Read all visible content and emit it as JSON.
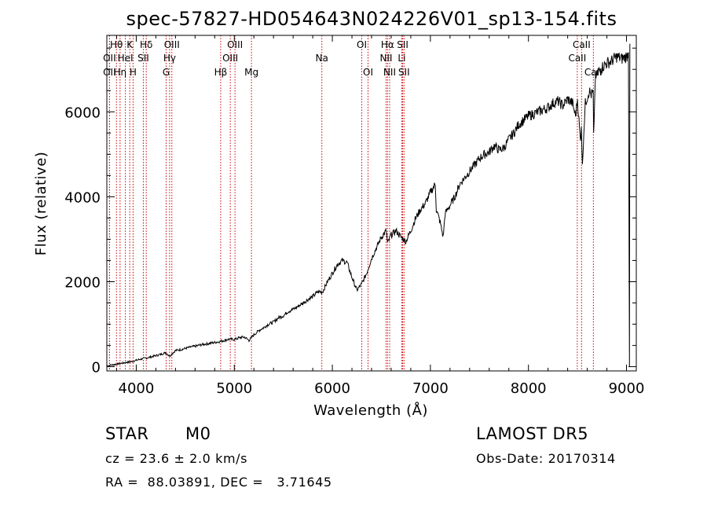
{
  "chart_data": {
    "type": "line",
    "title": "spec-57827-HD054643N024226V01_sp13-154.fits",
    "xlabel": "Wavelength (Å)",
    "ylabel": "Flux (relative)",
    "xlim": [
      3700,
      9100
    ],
    "ylim": [
      -100,
      7800
    ],
    "x_ticks": [
      4000,
      5000,
      6000,
      7000,
      8000,
      9000
    ],
    "y_ticks": [
      0,
      2000,
      4000,
      6000
    ],
    "x_tick_labels": [
      "4000",
      "5000",
      "6000",
      "7000",
      "8000",
      "9000"
    ],
    "y_tick_labels": [
      "0",
      "2000",
      "4000",
      "6000"
    ],
    "grid": false,
    "series": [
      {
        "x": [
          3700,
          3750,
          3800,
          3850,
          3900,
          3950,
          4000,
          4050,
          4100,
          4150,
          4200,
          4250,
          4300,
          4340,
          4400,
          4450,
          4500,
          4550,
          4600,
          4650,
          4700,
          4750,
          4800,
          4850,
          4900,
          4950,
          5000,
          5050,
          5100,
          5150,
          5200,
          5250,
          5300,
          5350,
          5400,
          5450,
          5500,
          5550,
          5600,
          5650,
          5700,
          5750,
          5800,
          5850,
          5900,
          5950,
          6000,
          6050,
          6100,
          6150,
          6200,
          6250,
          6300,
          6350,
          6400,
          6450,
          6500,
          6550,
          6563,
          6600,
          6650,
          6700,
          6750,
          6800,
          6850,
          6900,
          6950,
          7000,
          7050,
          7060,
          7100,
          7130,
          7150,
          7200,
          7250,
          7300,
          7350,
          7400,
          7450,
          7500,
          7550,
          7600,
          7650,
          7700,
          7750,
          7800,
          7850,
          7900,
          7950,
          8000,
          8050,
          8100,
          8150,
          8200,
          8250,
          8300,
          8350,
          8400,
          8450,
          8480,
          8500,
          8530,
          8540,
          8550,
          8560,
          8580,
          8600,
          8620,
          8640,
          8660,
          8665,
          8680,
          8700,
          8750,
          8800,
          8850,
          8900,
          8950,
          9000,
          9020
        ],
        "y": [
          20,
          40,
          60,
          80,
          100,
          120,
          150,
          180,
          200,
          230,
          260,
          290,
          330,
          250,
          380,
          400,
          430,
          460,
          480,
          510,
          530,
          550,
          570,
          590,
          620,
          650,
          640,
          680,
          700,
          620,
          750,
          850,
          920,
          1000,
          1050,
          1150,
          1200,
          1300,
          1350,
          1420,
          1500,
          1580,
          1650,
          1760,
          1760,
          2000,
          2200,
          2400,
          2500,
          2450,
          2100,
          1800,
          1950,
          2200,
          2550,
          2800,
          3050,
          3200,
          2900,
          3100,
          3200,
          3050,
          2950,
          3200,
          3500,
          3700,
          3850,
          4100,
          4300,
          3700,
          3400,
          3050,
          3600,
          3800,
          4000,
          4300,
          4450,
          4600,
          4750,
          4900,
          5000,
          5050,
          5200,
          5100,
          5150,
          5350,
          5500,
          5700,
          5800,
          5900,
          5950,
          6000,
          6050,
          6100,
          6200,
          6250,
          6150,
          6300,
          6200,
          5900,
          6300,
          5300,
          5700,
          4700,
          5300,
          6200,
          6350,
          6500,
          6400,
          6450,
          5400,
          6700,
          6900,
          7050,
          7150,
          7200,
          7300,
          7250,
          7300,
          7400
        ]
      }
    ],
    "lines": [
      {
        "label": "OII",
        "x": 3727,
        "row": 1
      },
      {
        "label": "Hθ",
        "x": 3798,
        "row": 0
      },
      {
        "label": "OII",
        "x": 3727,
        "row": 2
      },
      {
        "label": "Hη",
        "x": 3835,
        "row": 2
      },
      {
        "label": "HeI",
        "x": 3889,
        "row": 1
      },
      {
        "label": "K",
        "x": 3934,
        "row": 0
      },
      {
        "label": "H",
        "x": 3968,
        "row": 2
      },
      {
        "label": "SII",
        "x": 4072,
        "row": 1
      },
      {
        "label": "Hδ",
        "x": 4102,
        "row": 0
      },
      {
        "label": "OIII",
        "x": 4363,
        "row": 0
      },
      {
        "label": "Hγ",
        "x": 4340,
        "row": 1
      },
      {
        "label": "G",
        "x": 4305,
        "row": 2
      },
      {
        "label": "Hβ",
        "x": 4861,
        "row": 2
      },
      {
        "label": "OIII",
        "x": 5007,
        "row": 0
      },
      {
        "label": "OIII",
        "x": 4959,
        "row": 1
      },
      {
        "label": "Mg",
        "x": 5175,
        "row": 2
      },
      {
        "label": "Na",
        "x": 5893,
        "row": 1
      },
      {
        "label": "OI",
        "x": 6300,
        "row": 0
      },
      {
        "label": "OI",
        "x": 6364,
        "row": 2
      },
      {
        "label": "Hα",
        "x": 6563,
        "row": 0
      },
      {
        "label": "NII",
        "x": 6548,
        "row": 1
      },
      {
        "label": "NII",
        "x": 6584,
        "row": 2
      },
      {
        "label": "SII",
        "x": 6717,
        "row": 0
      },
      {
        "label": "Li",
        "x": 6708,
        "row": 1
      },
      {
        "label": "SII",
        "x": 6731,
        "row": 2
      },
      {
        "label": "CaII",
        "x": 8542,
        "row": 0
      },
      {
        "label": "CaII",
        "x": 8498,
        "row": 1
      },
      {
        "label": "CaII",
        "x": 8662,
        "row": 2
      }
    ],
    "line_color": "#000000",
    "marker_color": "#cc0000"
  },
  "info": {
    "object_class": "STAR",
    "subclass": "M0",
    "survey": "LAMOST DR5",
    "redshift": "cz = 23.6 ± 2.0 km/s",
    "obs_date": "Obs-Date: 20170314",
    "coords": "RA =  88.03891, DEC =   3.71645"
  }
}
